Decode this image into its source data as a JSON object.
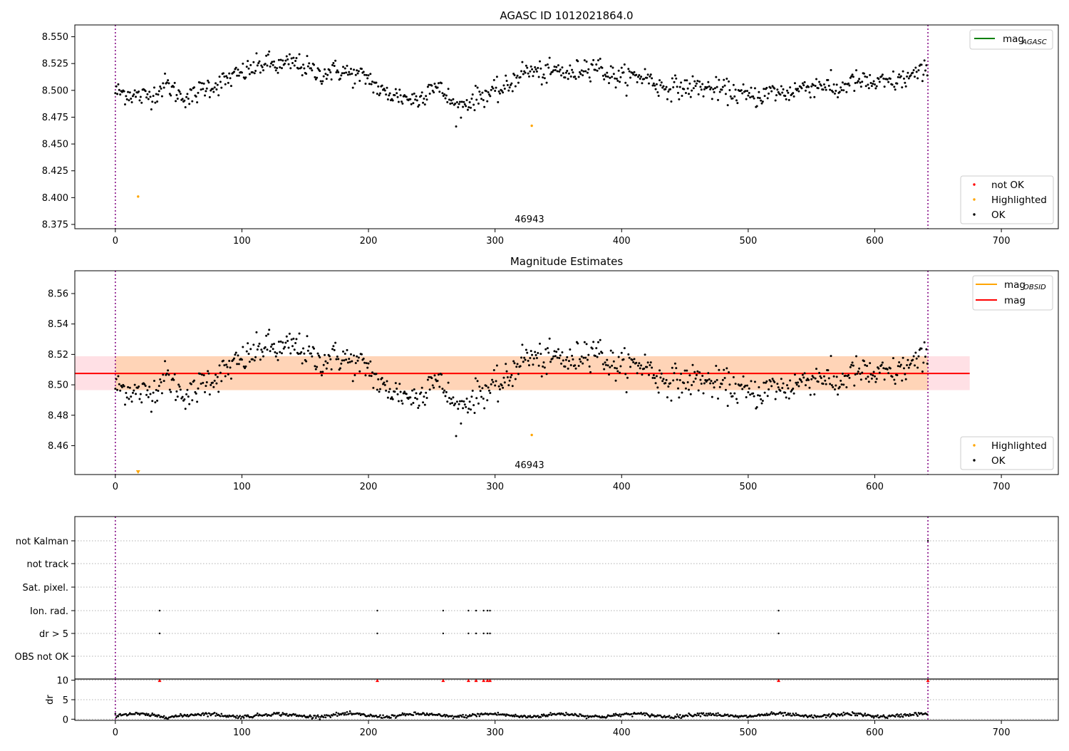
{
  "figure": {
    "top_title": "AGASC ID 1012021864.0",
    "middle_title": "Magnitude Estimates"
  },
  "chart_data": [
    {
      "id": "mag_agasc_panel",
      "type": "scatter",
      "title": "AGASC ID 1012021864.0",
      "xlabel": "",
      "ylabel": "",
      "xlim": [
        -32,
        745
      ],
      "ylim": [
        8.371,
        8.561
      ],
      "x_ticks": [
        0,
        100,
        200,
        300,
        400,
        500,
        600,
        700
      ],
      "y_ticks": [
        8.375,
        8.4,
        8.425,
        8.45,
        8.475,
        8.5,
        8.525,
        8.55
      ],
      "y_tick_labels": [
        "8.375",
        "8.400",
        "8.425",
        "8.450",
        "8.475",
        "8.500",
        "8.525",
        "8.550"
      ],
      "obsid_lines": [
        0,
        642
      ],
      "obsid_label": "46943",
      "obsid_label_x": 321,
      "highlighted_points": [
        {
          "x": 18,
          "y": 8.401
        },
        {
          "x": 329,
          "y": 8.467
        }
      ],
      "not_ok_points": [],
      "legend_lines": [
        {
          "label": "mag",
          "sub": "AGASC",
          "color": "#008000"
        }
      ],
      "legend_points": [
        {
          "label": "not OK",
          "color": "#ff0000"
        },
        {
          "label": "Highlighted",
          "color": "#ffa500"
        },
        {
          "label": "OK",
          "color": "#000000"
        }
      ],
      "ok_series_description": "Black points, one per sample, x from 0 to 642; values trace the anchors below",
      "ok_anchors": {
        "x": [
          0,
          10,
          20,
          30,
          40,
          50,
          60,
          70,
          80,
          90,
          100,
          110,
          120,
          130,
          140,
          150,
          160,
          170,
          180,
          190,
          200,
          210,
          220,
          230,
          240,
          250,
          260,
          270,
          280,
          290,
          300,
          310,
          320,
          330,
          340,
          350,
          360,
          370,
          380,
          390,
          400,
          410,
          420,
          430,
          440,
          450,
          460,
          470,
          480,
          490,
          500,
          510,
          520,
          530,
          540,
          550,
          560,
          570,
          580,
          590,
          600,
          610,
          620,
          630,
          642
        ],
        "y": [
          8.499,
          8.497,
          8.494,
          8.496,
          8.506,
          8.496,
          8.493,
          8.503,
          8.505,
          8.511,
          8.516,
          8.521,
          8.526,
          8.522,
          8.526,
          8.522,
          8.515,
          8.518,
          8.518,
          8.513,
          8.512,
          8.498,
          8.496,
          8.493,
          8.491,
          8.506,
          8.497,
          8.483,
          8.49,
          8.496,
          8.498,
          8.503,
          8.517,
          8.518,
          8.515,
          8.519,
          8.514,
          8.522,
          8.524,
          8.514,
          8.512,
          8.513,
          8.513,
          8.503,
          8.503,
          8.502,
          8.504,
          8.501,
          8.5,
          8.498,
          8.494,
          8.495,
          8.499,
          8.497,
          8.502,
          8.504,
          8.506,
          8.499,
          8.508,
          8.508,
          8.506,
          8.507,
          8.509,
          8.514,
          8.518
        ]
      },
      "ok_scatter": 0.006
    },
    {
      "id": "mag_estimates_panel",
      "type": "scatter",
      "title": "Magnitude Estimates",
      "xlabel": "",
      "ylabel": "",
      "xlim": [
        -32,
        745
      ],
      "ylim": [
        8.441,
        8.575
      ],
      "x_ticks": [
        0,
        100,
        200,
        300,
        400,
        500,
        600,
        700
      ],
      "y_ticks": [
        8.46,
        8.48,
        8.5,
        8.52,
        8.54,
        8.56
      ],
      "y_tick_labels": [
        "8.46",
        "8.48",
        "8.50",
        "8.52",
        "8.54",
        "8.56"
      ],
      "obsid_lines": [
        0,
        642
      ],
      "obsid_label": "46943",
      "obsid_label_x": 321,
      "mag_obsid": {
        "value": 8.5075,
        "band": [
          8.4965,
          8.5188
        ],
        "x_range": [
          0,
          642
        ],
        "color": "#ffa500"
      },
      "mag": {
        "value": 8.5075,
        "band": [
          8.4965,
          8.5188
        ],
        "x_range": [
          -32,
          675
        ],
        "color": "#ff0000"
      },
      "highlighted_points": [
        {
          "x": 329,
          "y": 8.467
        }
      ],
      "highlighted_offscale": [
        {
          "x": 18,
          "y": 8.401
        }
      ],
      "legend_lines": [
        {
          "label": "mag",
          "sub": "OBSID",
          "color": "#ffa500"
        },
        {
          "label": "mag",
          "sub": "",
          "color": "#ff0000"
        }
      ],
      "legend_points": [
        {
          "label": "Highlighted",
          "color": "#ffa500"
        },
        {
          "label": "OK",
          "color": "#000000"
        }
      ],
      "ok_series_description": "Same black points as the top panel",
      "ok_scatter": 0.006
    },
    {
      "id": "flags_panel",
      "type": "scatter",
      "title": "",
      "xlabel": "",
      "ylabel": "",
      "xlim": [
        -32,
        745
      ],
      "categories": [
        "not Kalman",
        "not track",
        "Sat. pixel.",
        "Ion. rad.",
        "dr > 5",
        "OBS not OK"
      ],
      "obsid_lines": [
        0,
        642
      ],
      "flagged_x": [
        35,
        207,
        259,
        279,
        285,
        291,
        294,
        296,
        524
      ],
      "flag_rows": [
        {
          "label": "not Kalman",
          "x": [
            642
          ]
        },
        {
          "label": "not track",
          "x": []
        },
        {
          "label": "Sat. pixel.",
          "x": []
        },
        {
          "label": "Ion. rad.",
          "x": [
            35,
            207,
            259,
            279,
            285,
            291,
            294,
            296,
            524
          ]
        },
        {
          "label": "dr > 5",
          "x": [
            35,
            207,
            259,
            279,
            285,
            291,
            294,
            296,
            524
          ]
        },
        {
          "label": "OBS not OK",
          "x": []
        }
      ]
    },
    {
      "id": "dr_panel",
      "type": "scatter",
      "title": "",
      "xlabel": "",
      "ylabel": "dr",
      "xlim": [
        -32,
        745
      ],
      "ylim": [
        -0.3,
        10.3
      ],
      "x_ticks": [
        0,
        100,
        200,
        300,
        400,
        500,
        600,
        700
      ],
      "y_ticks": [
        0,
        5,
        10
      ],
      "y_tick_labels": [
        "0",
        "5",
        "10"
      ],
      "obsid_lines": [
        0,
        642
      ],
      "dr_typical": {
        "mean": 1.0,
        "spread": 0.5
      },
      "dr_flagged_marker_value": 10,
      "dr_flagged_marker_color": "#ff0000"
    }
  ]
}
